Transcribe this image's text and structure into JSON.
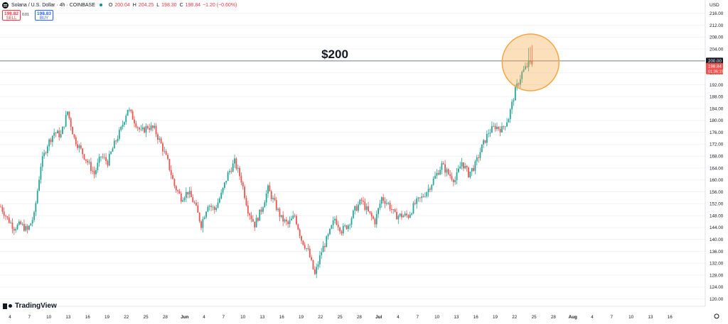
{
  "header": {
    "symbol_title": "Solana / U.S. Dollar · 4h · COINBASE",
    "open_label": "O",
    "open": "200.04",
    "high_label": "H",
    "high": "204.25",
    "low_label": "L",
    "low": "198.30",
    "close_label": "C",
    "close": "198.84",
    "change": "−1.20 (−0.60%)",
    "status_color": "#089981"
  },
  "trade": {
    "sell_price": "198.82",
    "sell_label": "SELL",
    "spread": "0.01",
    "buy_price": "198.83",
    "buy_label": "BUY"
  },
  "brand": {
    "name": "TradingView"
  },
  "currency": "USD",
  "annotation": {
    "text": "$200",
    "highlight_color": "#f7a540"
  },
  "price_tags": {
    "level": "200.00",
    "last": "198.84",
    "countdown": "01:36:19"
  },
  "colors": {
    "up": "#26a69a",
    "down": "#ef5350",
    "level_line": "#787b86"
  },
  "chart_data": {
    "type": "candlestick",
    "ylim": [
      118,
      220
    ],
    "y_ticks": [
      120,
      124,
      128,
      132,
      136,
      140,
      144,
      148,
      152,
      156,
      160,
      164,
      168,
      172,
      176,
      180,
      184,
      188,
      192,
      196,
      200,
      204,
      208,
      212,
      216
    ],
    "x_tick_labels": [
      "4",
      "7",
      "10",
      "13",
      "16",
      "19",
      "22",
      "25",
      "28",
      "Jun",
      "4",
      "7",
      "10",
      "13",
      "16",
      "19",
      "22",
      "25",
      "28",
      "Jul",
      "4",
      "7",
      "10",
      "13",
      "16",
      "19",
      "22",
      "25",
      "28",
      "Aug",
      "4",
      "7",
      "10",
      "13",
      "16"
    ],
    "horizontal_level": 200,
    "waypoints": [
      [
        0,
        151
      ],
      [
        4,
        147
      ],
      [
        8,
        144
      ],
      [
        12,
        145
      ],
      [
        16,
        143
      ],
      [
        20,
        148
      ],
      [
        24,
        165
      ],
      [
        28,
        172
      ],
      [
        32,
        176
      ],
      [
        36,
        175
      ],
      [
        40,
        183
      ],
      [
        44,
        174
      ],
      [
        48,
        170
      ],
      [
        52,
        166
      ],
      [
        56,
        162
      ],
      [
        60,
        168
      ],
      [
        64,
        166
      ],
      [
        68,
        172
      ],
      [
        72,
        177
      ],
      [
        76,
        184
      ],
      [
        80,
        180
      ],
      [
        84,
        176
      ],
      [
        88,
        178
      ],
      [
        92,
        177
      ],
      [
        96,
        172
      ],
      [
        100,
        166
      ],
      [
        104,
        158
      ],
      [
        108,
        154
      ],
      [
        112,
        156
      ],
      [
        116,
        152
      ],
      [
        120,
        145
      ],
      [
        124,
        152
      ],
      [
        128,
        150
      ],
      [
        132,
        155
      ],
      [
        136,
        162
      ],
      [
        140,
        166
      ],
      [
        144,
        160
      ],
      [
        148,
        150
      ],
      [
        152,
        145
      ],
      [
        156,
        150
      ],
      [
        160,
        157
      ],
      [
        164,
        152
      ],
      [
        168,
        147
      ],
      [
        172,
        145
      ],
      [
        176,
        148
      ],
      [
        180,
        140
      ],
      [
        184,
        136
      ],
      [
        188,
        128
      ],
      [
        192,
        136
      ],
      [
        196,
        141
      ],
      [
        200,
        147
      ],
      [
        204,
        143
      ],
      [
        208,
        145
      ],
      [
        212,
        150
      ],
      [
        216,
        153
      ],
      [
        220,
        149
      ],
      [
        224,
        146
      ],
      [
        228,
        154
      ],
      [
        232,
        152
      ],
      [
        236,
        148
      ],
      [
        240,
        148
      ],
      [
        244,
        148
      ],
      [
        248,
        152
      ],
      [
        252,
        154
      ],
      [
        256,
        157
      ],
      [
        260,
        161
      ],
      [
        264,
        165
      ],
      [
        268,
        162
      ],
      [
        272,
        160
      ],
      [
        276,
        166
      ],
      [
        280,
        162
      ],
      [
        284,
        165
      ],
      [
        288,
        171
      ],
      [
        292,
        176
      ],
      [
        296,
        178
      ],
      [
        300,
        177
      ],
      [
        304,
        181
      ],
      [
        308,
        190
      ],
      [
        312,
        196
      ],
      [
        316,
        199
      ],
      [
        318,
        199
      ]
    ],
    "seed": 7
  }
}
